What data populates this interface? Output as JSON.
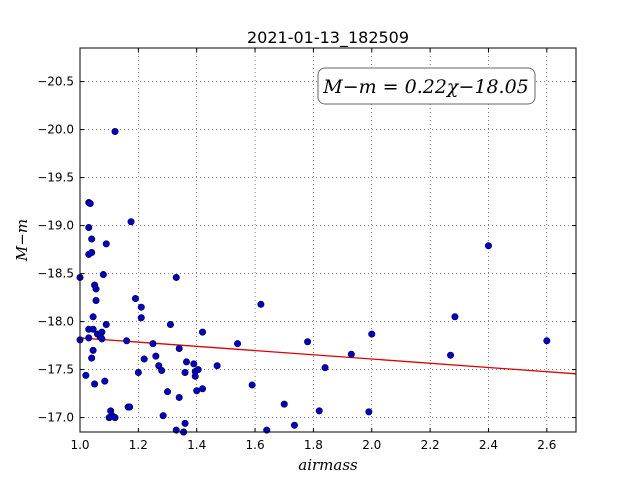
{
  "chart_data": {
    "type": "scatter",
    "title": "2021-01-13_182509",
    "xlabel": "airmass",
    "ylabel": "M−m",
    "xlim": [
      1.0,
      2.7
    ],
    "ylim": [
      -20.85,
      -16.85
    ],
    "y_inverted": true,
    "grid": true,
    "xticks": [
      1.0,
      1.2,
      1.4,
      1.6,
      1.8,
      2.0,
      2.2,
      2.4,
      2.6
    ],
    "xtick_labels": [
      "1.0",
      "1.2",
      "1.4",
      "1.6",
      "1.8",
      "2.0",
      "2.2",
      "2.4",
      "2.6"
    ],
    "yticks": [
      -17.0,
      -17.5,
      -18.0,
      -18.5,
      -19.0,
      -19.5,
      -20.0,
      -20.5
    ],
    "ytick_labels": [
      "−17.0",
      "−17.5",
      "−18.0",
      "−18.5",
      "−19.0",
      "−19.5",
      "−20.0",
      "−20.5"
    ],
    "annotation": "M−m = 0.22χ−18.05",
    "marker_color": "#0000cc",
    "fit_color": "#dd0000",
    "fit": {
      "slope": 0.22,
      "intercept": -18.05
    },
    "points": [
      [
        1.0,
        -17.81
      ],
      [
        1.0,
        -18.46
      ],
      [
        1.02,
        -17.44
      ],
      [
        1.03,
        -17.83
      ],
      [
        1.03,
        -17.92
      ],
      [
        1.03,
        -18.7
      ],
      [
        1.03,
        -18.98
      ],
      [
        1.03,
        -19.24
      ],
      [
        1.035,
        -19.23
      ],
      [
        1.04,
        -17.62
      ],
      [
        1.04,
        -18.86
      ],
      [
        1.04,
        -18.72
      ],
      [
        1.045,
        -17.7
      ],
      [
        1.045,
        -17.92
      ],
      [
        1.045,
        -18.05
      ],
      [
        1.05,
        -17.35
      ],
      [
        1.05,
        -18.38
      ],
      [
        1.055,
        -18.22
      ],
      [
        1.055,
        -18.34
      ],
      [
        1.06,
        -17.87
      ],
      [
        1.07,
        -17.84
      ],
      [
        1.07,
        -17.87
      ],
      [
        1.075,
        -17.82
      ],
      [
        1.075,
        -17.89
      ],
      [
        1.08,
        -18.49
      ],
      [
        1.085,
        -17.38
      ],
      [
        1.09,
        -17.97
      ],
      [
        1.09,
        -18.81
      ],
      [
        1.1,
        -17.0
      ],
      [
        1.105,
        -17.07
      ],
      [
        1.11,
        -17.02
      ],
      [
        1.12,
        -17.0
      ],
      [
        1.12,
        -19.98
      ],
      [
        1.16,
        -17.8
      ],
      [
        1.165,
        -17.11
      ],
      [
        1.17,
        -17.11
      ],
      [
        1.175,
        -19.04
      ],
      [
        1.19,
        -18.24
      ],
      [
        1.2,
        -17.47
      ],
      [
        1.21,
        -18.04
      ],
      [
        1.21,
        -18.15
      ],
      [
        1.22,
        -17.61
      ],
      [
        1.25,
        -17.77
      ],
      [
        1.26,
        -17.64
      ],
      [
        1.27,
        -17.54
      ],
      [
        1.28,
        -17.49
      ],
      [
        1.285,
        -17.02
      ],
      [
        1.3,
        -17.27
      ],
      [
        1.31,
        -17.97
      ],
      [
        1.33,
        -16.87
      ],
      [
        1.33,
        -18.46
      ],
      [
        1.34,
        -17.21
      ],
      [
        1.34,
        -17.72
      ],
      [
        1.355,
        -16.85
      ],
      [
        1.36,
        -16.94
      ],
      [
        1.36,
        -17.47
      ],
      [
        1.365,
        -17.58
      ],
      [
        1.39,
        -17.56
      ],
      [
        1.395,
        -17.43
      ],
      [
        1.395,
        -17.48
      ],
      [
        1.4,
        -17.28
      ],
      [
        1.405,
        -17.5
      ],
      [
        1.42,
        -17.3
      ],
      [
        1.42,
        -17.89
      ],
      [
        1.47,
        -17.54
      ],
      [
        1.54,
        -17.77
      ],
      [
        1.59,
        -17.34
      ],
      [
        1.62,
        -18.18
      ],
      [
        1.64,
        -16.87
      ],
      [
        1.7,
        -17.14
      ],
      [
        1.735,
        -16.92
      ],
      [
        1.78,
        -17.79
      ],
      [
        1.82,
        -17.07
      ],
      [
        1.84,
        -17.52
      ],
      [
        1.93,
        -17.66
      ],
      [
        1.99,
        -17.06
      ],
      [
        2.0,
        -17.87
      ],
      [
        2.27,
        -17.65
      ],
      [
        2.285,
        -18.05
      ],
      [
        2.4,
        -18.79
      ],
      [
        2.6,
        -17.8
      ]
    ]
  }
}
